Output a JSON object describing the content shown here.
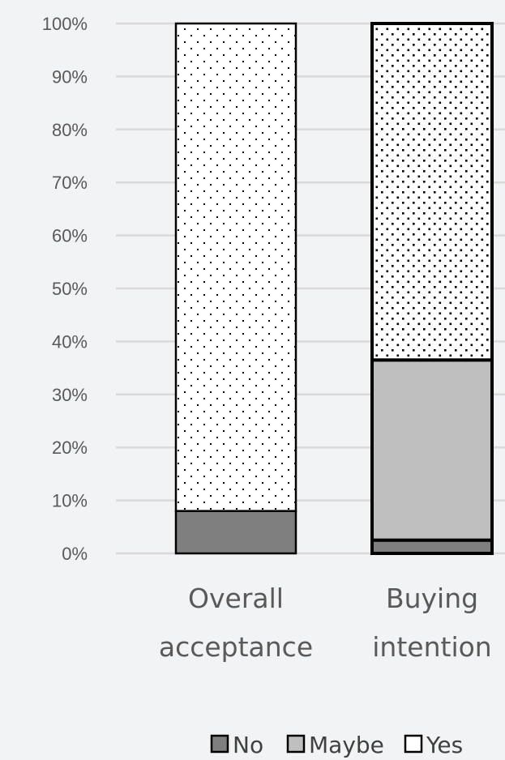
{
  "chart_data": {
    "type": "bar",
    "stacked": true,
    "normalized": true,
    "categories": [
      [
        "Overall",
        "acceptance"
      ],
      [
        "Buying",
        "intention"
      ]
    ],
    "series": [
      {
        "name": "No",
        "values": [
          8,
          2.5
        ],
        "color": "#7f7f7f",
        "pattern": "solid"
      },
      {
        "name": "Maybe",
        "values": [
          0,
          34
        ],
        "color": "#bfbfbf",
        "pattern": "solid"
      },
      {
        "name": "Yes",
        "values": [
          92,
          63.5
        ],
        "color": "#ffffff",
        "pattern": "dots"
      }
    ],
    "ylim": [
      0,
      100
    ],
    "yticks": [
      "0%",
      "10%",
      "20%",
      "30%",
      "40%",
      "50%",
      "60%",
      "70%",
      "80%",
      "90%",
      "100%"
    ],
    "title": "",
    "xlabel": "",
    "ylabel": "",
    "grid": true,
    "legend_position": "bottom"
  }
}
